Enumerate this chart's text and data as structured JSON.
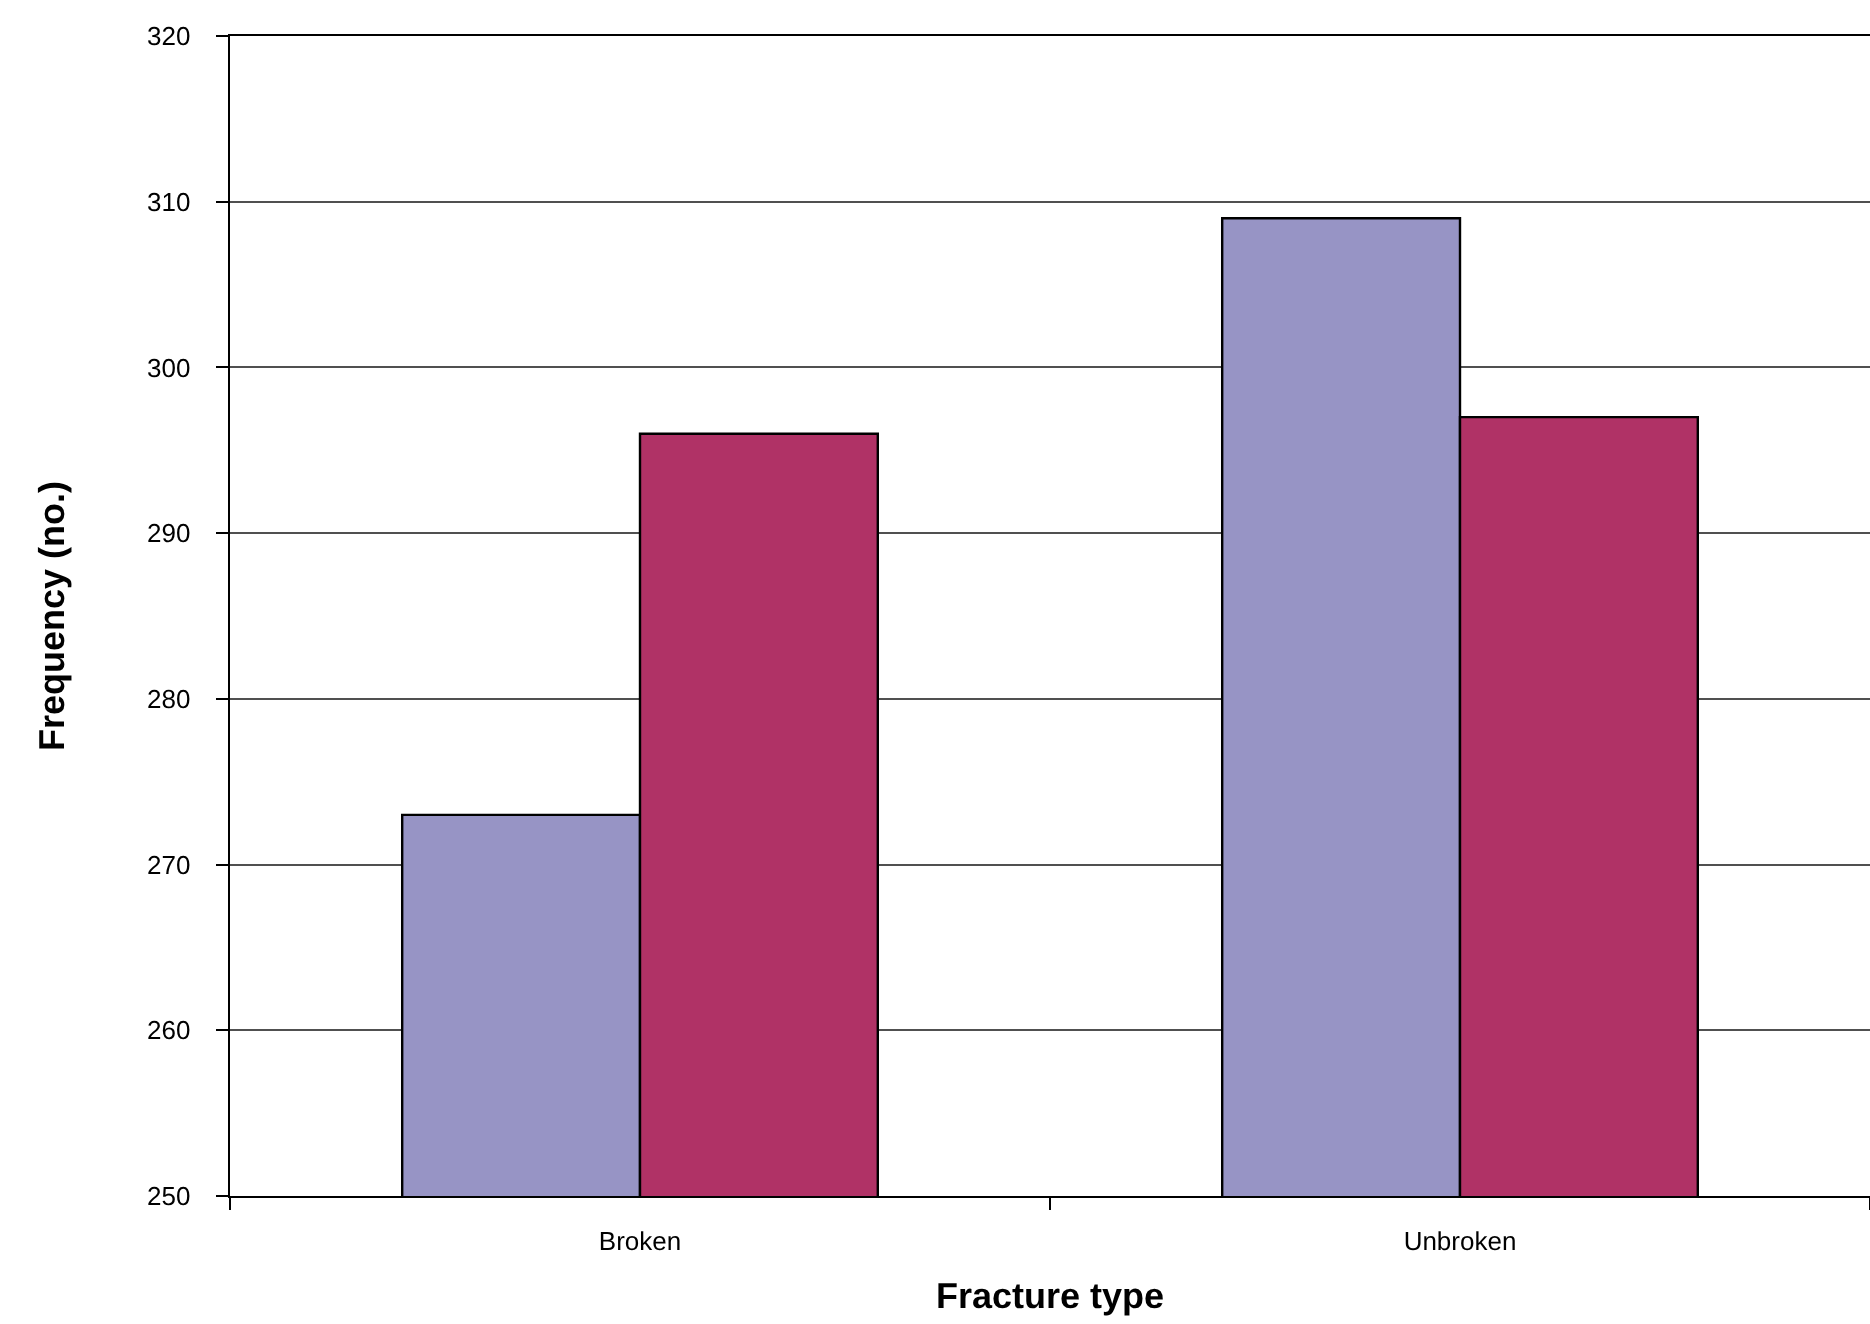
{
  "chart_data": {
    "type": "bar",
    "xlabel": "Fracture type",
    "ylabel": "Frequency (no.)",
    "categories": [
      "Broken",
      "Unbroken"
    ],
    "series": [
      {
        "color": "#9794c5",
        "values": [
          273,
          309
        ]
      },
      {
        "color": "#b03266",
        "values": [
          296,
          297
        ]
      }
    ],
    "ylim": [
      250,
      320
    ],
    "yticks": [
      250,
      260,
      270,
      280,
      290,
      300,
      310,
      320
    ],
    "grid": "y"
  }
}
